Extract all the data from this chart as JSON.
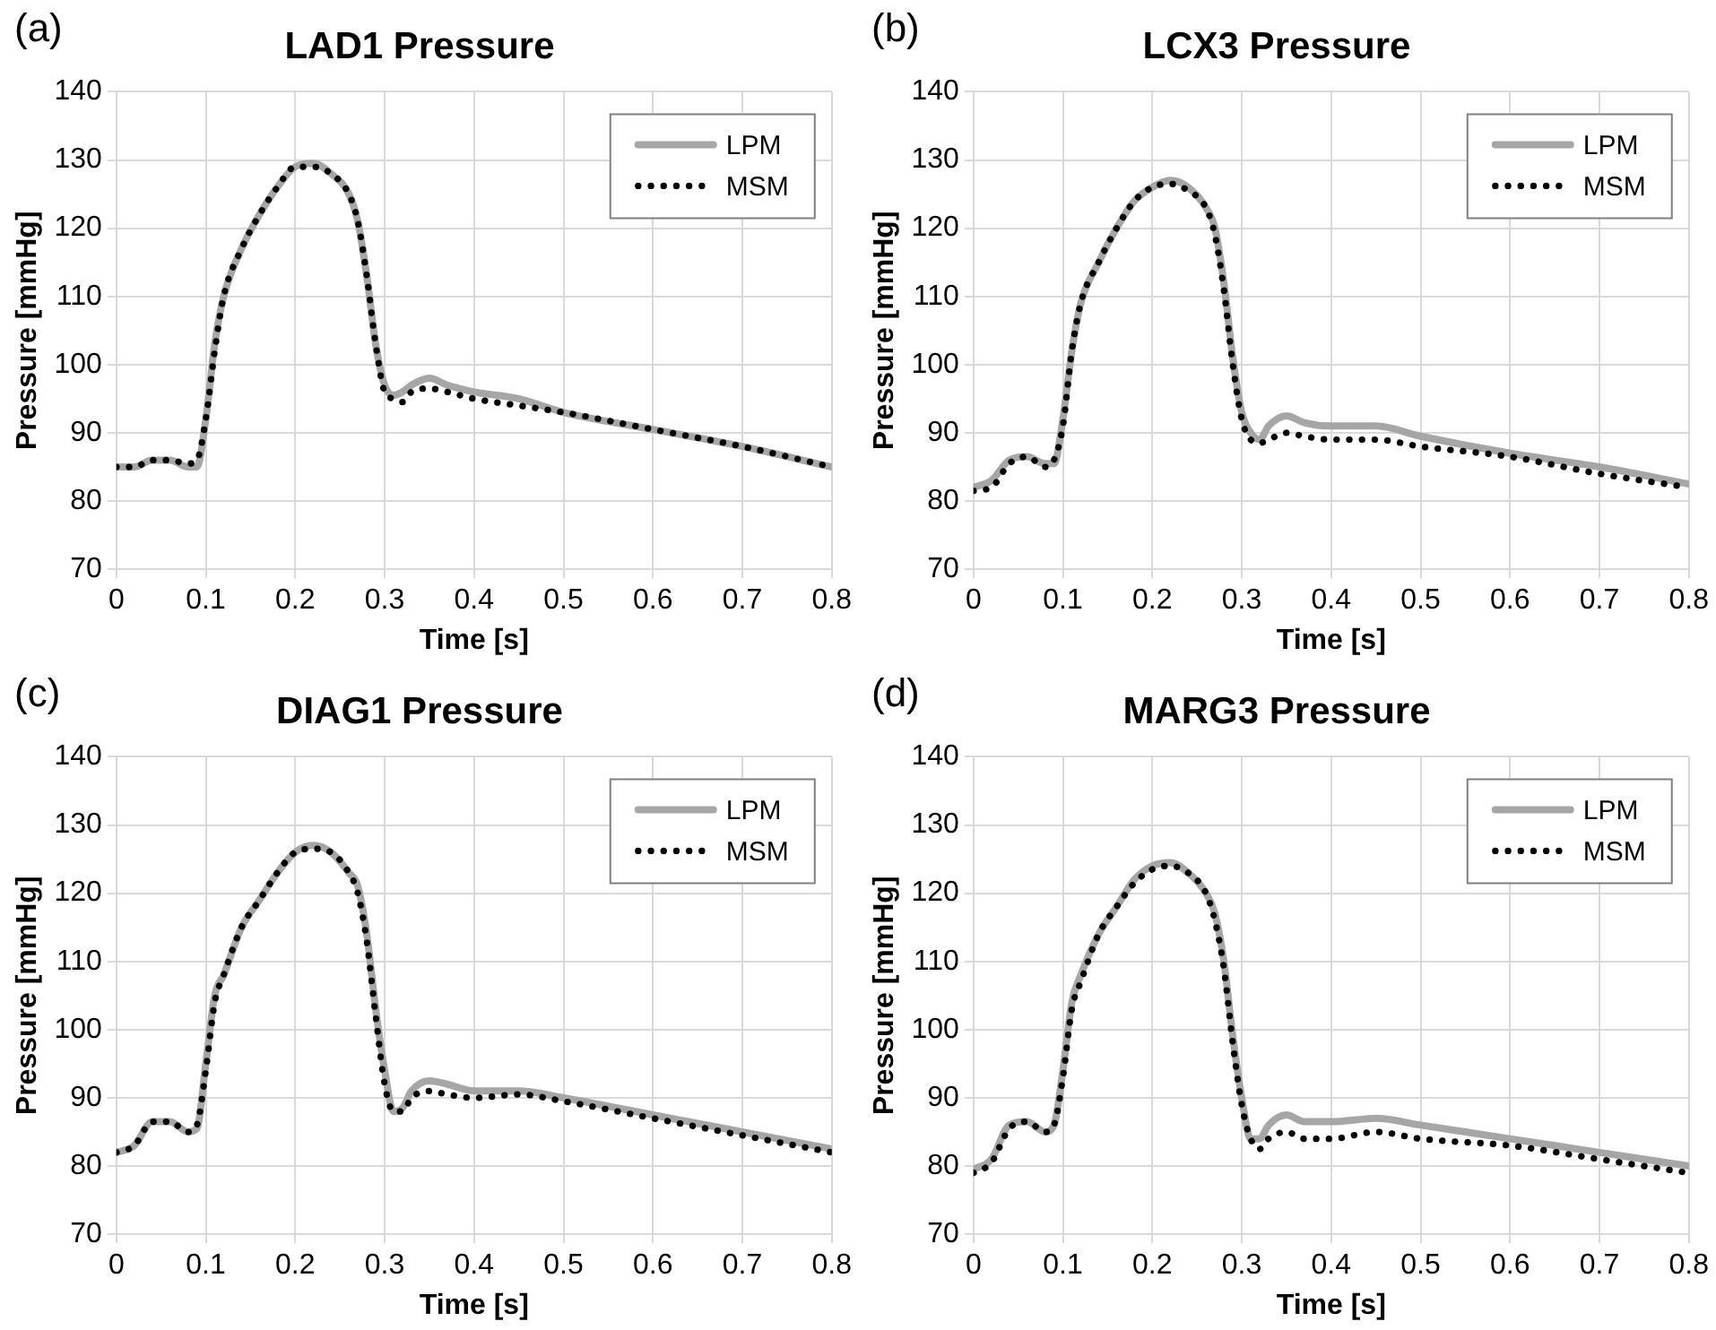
{
  "chart_data": [
    {
      "type": "line",
      "title": "LAD1 Pressure",
      "xlabel": "Time [s]",
      "ylabel": "Pressure [mmHg]",
      "annotations": [
        "(a)"
      ],
      "xlim": [
        0,
        0.8
      ],
      "xticks": [
        0,
        0.1,
        0.2,
        0.3,
        0.4,
        0.5,
        0.6,
        0.7,
        0.8
      ],
      "ylim": [
        70,
        140
      ],
      "yticks": [
        70,
        80,
        90,
        100,
        110,
        120,
        130,
        140
      ],
      "grid": true,
      "legend": "top right",
      "x": [
        0,
        0.02,
        0.04,
        0.06,
        0.08,
        0.09,
        0.1,
        0.11,
        0.12,
        0.14,
        0.16,
        0.18,
        0.2,
        0.22,
        0.24,
        0.26,
        0.27,
        0.28,
        0.29,
        0.3,
        0.31,
        0.32,
        0.33,
        0.35,
        0.37,
        0.4,
        0.45,
        0.5,
        0.6,
        0.7,
        0.8
      ],
      "series": [
        {
          "name": "LPM",
          "color": "#a6a6a6",
          "line_style": "solid",
          "values": [
            85,
            85,
            86,
            86,
            85,
            85,
            92,
            103,
            110,
            117,
            122,
            126,
            129,
            129.5,
            128,
            125,
            121,
            113,
            103,
            97,
            95.5,
            96,
            97,
            98,
            97,
            96,
            95,
            93,
            90.5,
            88,
            85
          ]
        },
        {
          "name": "MSM",
          "color": "#000000",
          "line_style": "dotted",
          "values": [
            85,
            85,
            86,
            86,
            85.5,
            86,
            92,
            102,
            110,
            117,
            122,
            126,
            129,
            129,
            128,
            125,
            121,
            113,
            103,
            96,
            95,
            94.5,
            96,
            96.5,
            96,
            95,
            94,
            93,
            90.5,
            88,
            85
          ]
        }
      ]
    },
    {
      "type": "line",
      "title": "LCX3 Pressure",
      "xlabel": "Time [s]",
      "ylabel": "Pressure [mmHg]",
      "annotations": [
        "(b)"
      ],
      "xlim": [
        0,
        0.8
      ],
      "xticks": [
        0,
        0.1,
        0.2,
        0.3,
        0.4,
        0.5,
        0.6,
        0.7,
        0.8
      ],
      "ylim": [
        70,
        140
      ],
      "yticks": [
        70,
        80,
        90,
        100,
        110,
        120,
        130,
        140
      ],
      "grid": true,
      "legend": "top right",
      "x": [
        0,
        0.02,
        0.04,
        0.06,
        0.08,
        0.09,
        0.1,
        0.11,
        0.12,
        0.14,
        0.16,
        0.18,
        0.2,
        0.22,
        0.24,
        0.26,
        0.27,
        0.28,
        0.29,
        0.3,
        0.31,
        0.32,
        0.33,
        0.35,
        0.37,
        0.4,
        0.45,
        0.5,
        0.6,
        0.7,
        0.8
      ],
      "series": [
        {
          "name": "LPM",
          "color": "#a6a6a6",
          "line_style": "solid",
          "values": [
            82,
            83,
            86,
            86.5,
            85.5,
            85.5,
            92,
            102,
            109,
            115,
            120,
            124,
            126,
            127,
            126,
            123,
            120,
            112,
            101,
            93,
            90,
            89,
            91,
            92.5,
            91.5,
            91,
            91,
            89.5,
            87,
            85,
            82.5
          ]
        },
        {
          "name": "MSM",
          "color": "#000000",
          "line_style": "dotted",
          "values": [
            81.5,
            82,
            85.5,
            86.5,
            85,
            86,
            91,
            102,
            109,
            115,
            120,
            124,
            126,
            126.5,
            125.5,
            123,
            119,
            111,
            100,
            92,
            89,
            88.5,
            89,
            90,
            89.5,
            89,
            89,
            88,
            86.5,
            84,
            82
          ]
        }
      ]
    },
    {
      "type": "line",
      "title": "DIAG1 Pressure",
      "xlabel": "Time [s]",
      "ylabel": "Pressure [mmHg]",
      "annotations": [
        "(c)"
      ],
      "xlim": [
        0,
        0.8
      ],
      "xticks": [
        0,
        0.1,
        0.2,
        0.3,
        0.4,
        0.5,
        0.6,
        0.7,
        0.8
      ],
      "ylim": [
        70,
        140
      ],
      "yticks": [
        70,
        80,
        90,
        100,
        110,
        120,
        130,
        140
      ],
      "grid": true,
      "legend": "top right",
      "x": [
        0,
        0.02,
        0.04,
        0.06,
        0.08,
        0.09,
        0.1,
        0.11,
        0.12,
        0.14,
        0.16,
        0.18,
        0.2,
        0.22,
        0.24,
        0.26,
        0.27,
        0.28,
        0.29,
        0.3,
        0.31,
        0.32,
        0.33,
        0.35,
        0.37,
        0.4,
        0.45,
        0.5,
        0.6,
        0.7,
        0.8
      ],
      "series": [
        {
          "name": "LPM",
          "color": "#a6a6a6",
          "line_style": "solid",
          "values": [
            82,
            83,
            86.5,
            86.5,
            85,
            85.5,
            95,
            105,
            108,
            115,
            119,
            123,
            126,
            127,
            126,
            123,
            121,
            114,
            103,
            94,
            88,
            88.5,
            91,
            92.5,
            92,
            91,
            91,
            90,
            87.5,
            85,
            82.5
          ]
        },
        {
          "name": "MSM",
          "color": "#000000",
          "line_style": "dotted",
          "values": [
            82,
            83,
            86.5,
            86.5,
            85,
            86,
            94,
            104,
            108,
            115,
            119,
            123,
            126,
            126.5,
            126,
            123,
            120,
            113,
            102,
            92,
            88,
            88,
            90,
            91,
            90.5,
            90,
            90.5,
            89.5,
            87,
            84.5,
            82
          ]
        }
      ]
    },
    {
      "type": "line",
      "title": "MARG3 Pressure",
      "xlabel": "Time [s]",
      "ylabel": "Pressure [mmHg]",
      "annotations": [
        "(d)"
      ],
      "xlim": [
        0,
        0.8
      ],
      "xticks": [
        0,
        0.1,
        0.2,
        0.3,
        0.4,
        0.5,
        0.6,
        0.7,
        0.8
      ],
      "ylim": [
        70,
        140
      ],
      "yticks": [
        70,
        80,
        90,
        100,
        110,
        120,
        130,
        140
      ],
      "grid": true,
      "legend": "top right",
      "x": [
        0,
        0.02,
        0.04,
        0.06,
        0.08,
        0.09,
        0.1,
        0.11,
        0.12,
        0.14,
        0.16,
        0.18,
        0.2,
        0.22,
        0.24,
        0.26,
        0.27,
        0.28,
        0.29,
        0.3,
        0.31,
        0.32,
        0.33,
        0.35,
        0.37,
        0.4,
        0.45,
        0.5,
        0.6,
        0.7,
        0.8
      ],
      "series": [
        {
          "name": "LPM",
          "color": "#a6a6a6",
          "line_style": "solid",
          "values": [
            79.5,
            81,
            86,
            86.5,
            85,
            86,
            94,
            104,
            108,
            114,
            118,
            122,
            124,
            124.5,
            123,
            120,
            117,
            110,
            99,
            90,
            84,
            84,
            86,
            87.5,
            86.5,
            86.5,
            87,
            86,
            84,
            82,
            80
          ]
        },
        {
          "name": "MSM",
          "color": "#000000",
          "line_style": "dotted",
          "values": [
            79,
            80.5,
            85.5,
            86.5,
            85,
            86,
            93,
            103,
            107,
            114,
            118,
            121.5,
            123.5,
            124,
            123,
            120,
            116,
            109,
            98,
            89,
            84,
            82.5,
            84,
            85,
            84,
            84,
            85,
            84,
            83,
            81,
            79
          ]
        }
      ]
    }
  ]
}
